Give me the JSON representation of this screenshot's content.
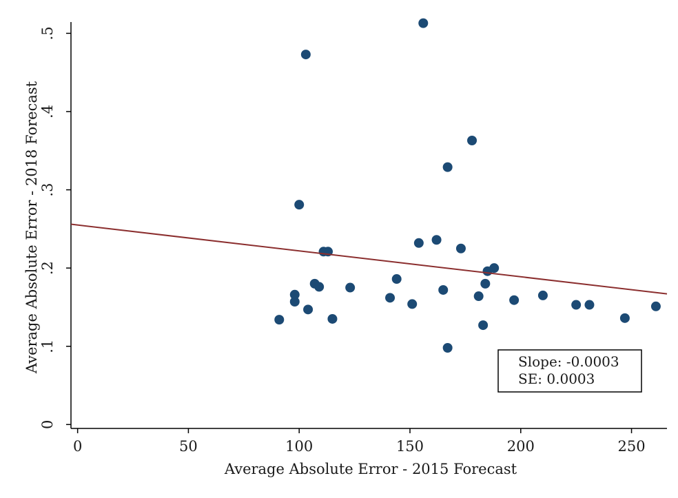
{
  "chart_data": {
    "type": "scatter",
    "title": "",
    "xlabel": "Average Absolute Error - 2015 Forecast",
    "ylabel": "Average Absolute Error - 2018 Forecast",
    "xlim": [
      -3,
      266
    ],
    "ylim": [
      -0.005,
      0.525
    ],
    "x_ticks": [
      0,
      50,
      100,
      150,
      200,
      250
    ],
    "x_tick_labels": [
      "0",
      "50",
      "100",
      "150",
      "200",
      "250"
    ],
    "y_ticks": [
      0,
      0.1,
      0.2,
      0.3,
      0.4,
      0.5
    ],
    "y_tick_labels": [
      "0",
      ".1",
      ".2",
      ".3",
      ".4",
      ".5"
    ],
    "grid": false,
    "legend": false,
    "marker_color": "#1c4a74",
    "line_color": "#8b2e2e",
    "points": [
      {
        "x": 156,
        "y": 0.513
      },
      {
        "x": 103,
        "y": 0.473
      },
      {
        "x": 178,
        "y": 0.363
      },
      {
        "x": 167,
        "y": 0.329
      },
      {
        "x": 100,
        "y": 0.281
      },
      {
        "x": 162,
        "y": 0.236
      },
      {
        "x": 154,
        "y": 0.232
      },
      {
        "x": 173,
        "y": 0.225
      },
      {
        "x": 111,
        "y": 0.221
      },
      {
        "x": 113,
        "y": 0.221
      },
      {
        "x": 188,
        "y": 0.2
      },
      {
        "x": 185,
        "y": 0.196
      },
      {
        "x": 144,
        "y": 0.186
      },
      {
        "x": 107,
        "y": 0.18
      },
      {
        "x": 184,
        "y": 0.18
      },
      {
        "x": 109,
        "y": 0.176
      },
      {
        "x": 123,
        "y": 0.175
      },
      {
        "x": 165,
        "y": 0.172
      },
      {
        "x": 98,
        "y": 0.166
      },
      {
        "x": 210,
        "y": 0.165
      },
      {
        "x": 181,
        "y": 0.164
      },
      {
        "x": 141,
        "y": 0.162
      },
      {
        "x": 197,
        "y": 0.159
      },
      {
        "x": 98,
        "y": 0.157
      },
      {
        "x": 151,
        "y": 0.154
      },
      {
        "x": 225,
        "y": 0.153
      },
      {
        "x": 231,
        "y": 0.153
      },
      {
        "x": 261,
        "y": 0.151
      },
      {
        "x": 104,
        "y": 0.147
      },
      {
        "x": 247,
        "y": 0.136
      },
      {
        "x": 115,
        "y": 0.135
      },
      {
        "x": 91,
        "y": 0.134
      },
      {
        "x": 183,
        "y": 0.127
      },
      {
        "x": 167,
        "y": 0.098
      }
    ],
    "fit_line": {
      "x": [
        -3,
        266
      ],
      "y": [
        0.256,
        0.167
      ]
    },
    "annotation": {
      "slope_text": "Slope: -0.0003",
      "se_text": "SE: 0.0003"
    }
  }
}
